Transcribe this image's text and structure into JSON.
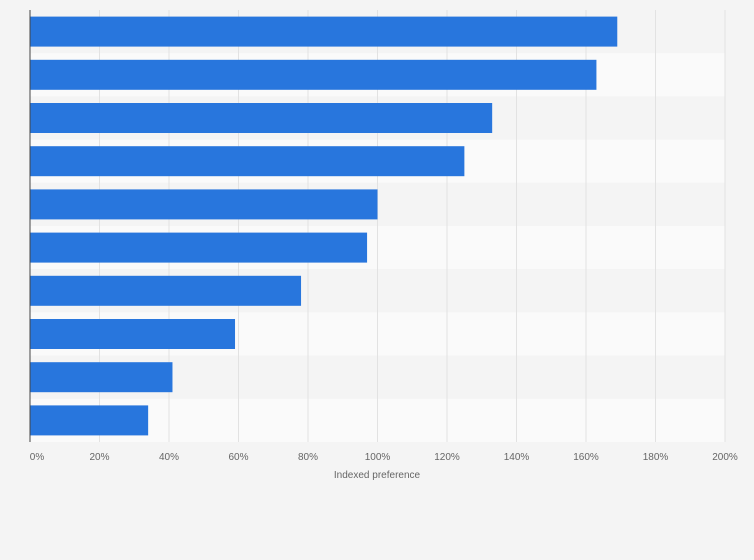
{
  "chart_data": {
    "type": "bar",
    "orientation": "horizontal",
    "title": "",
    "xlabel": "Indexed preference",
    "ylabel": "",
    "categories": [
      "",
      "",
      "",
      "",
      "",
      "",
      "",
      "",
      "",
      ""
    ],
    "values": [
      169,
      163,
      133,
      125,
      100,
      97,
      78,
      59,
      41,
      34
    ],
    "xlim": [
      0,
      200
    ],
    "xticks": [
      0,
      20,
      40,
      60,
      80,
      100,
      120,
      140,
      160,
      180,
      200
    ],
    "tick_labels": [
      "0%",
      "20%",
      "40%",
      "60%",
      "80%",
      "100%",
      "120%",
      "140%",
      "160%",
      "180%",
      "200%"
    ],
    "grid": true,
    "bar_color": "#2876dd",
    "stripe_colors": [
      "#f4f4f4",
      "#fafafa"
    ],
    "grid_color": "#e2e2e2",
    "axis_color": "#444444"
  }
}
